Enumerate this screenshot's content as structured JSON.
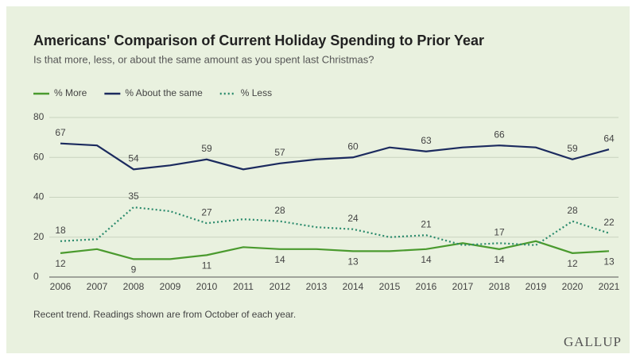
{
  "chart_data": {
    "type": "line",
    "title": "Americans' Comparison of Current Holiday Spending to Prior Year",
    "subtitle": "Is that more, less, or about the same amount as you spent last Christmas?",
    "note": "Recent trend. Readings shown are from October of each year.",
    "source": "GALLUP",
    "categories": [
      "2006",
      "2007",
      "2008",
      "2009",
      "2010",
      "2011",
      "2012",
      "2013",
      "2014",
      "2015",
      "2016",
      "2017",
      "2018",
      "2019",
      "2020",
      "2021"
    ],
    "series": [
      {
        "name": "% More",
        "color": "#4a9a2e",
        "style": "solid",
        "label_side": "below",
        "values": [
          12,
          14,
          9,
          9,
          11,
          15,
          14,
          14,
          13,
          13,
          14,
          17,
          14,
          18,
          12,
          13
        ],
        "value_labels": [
          "12",
          null,
          "9",
          null,
          "11",
          null,
          "14",
          null,
          "13",
          null,
          "14",
          null,
          "14",
          null,
          "12",
          "13"
        ]
      },
      {
        "name": "% About the same",
        "color": "#1b2a5e",
        "style": "solid",
        "label_side": "above",
        "values": [
          67,
          66,
          54,
          56,
          59,
          54,
          57,
          59,
          60,
          65,
          63,
          65,
          66,
          65,
          59,
          64
        ],
        "value_labels": [
          "67",
          null,
          "54",
          null,
          "59",
          null,
          "57",
          null,
          "60",
          null,
          "63",
          null,
          "66",
          null,
          "59",
          "64"
        ]
      },
      {
        "name": "% Less",
        "color": "#2a8a6c",
        "style": "dotted",
        "label_side": "above",
        "values": [
          18,
          19,
          35,
          33,
          27,
          29,
          28,
          25,
          24,
          20,
          21,
          16,
          17,
          16,
          28,
          22
        ],
        "value_labels": [
          "18",
          null,
          "35",
          null,
          "27",
          null,
          "28",
          null,
          "24",
          null,
          "21",
          null,
          "17",
          null,
          "28",
          "22"
        ]
      }
    ],
    "ylim": [
      0,
      80
    ],
    "yticks": [
      0,
      20,
      40,
      60,
      80
    ],
    "grid": true,
    "legend": "top-left"
  }
}
